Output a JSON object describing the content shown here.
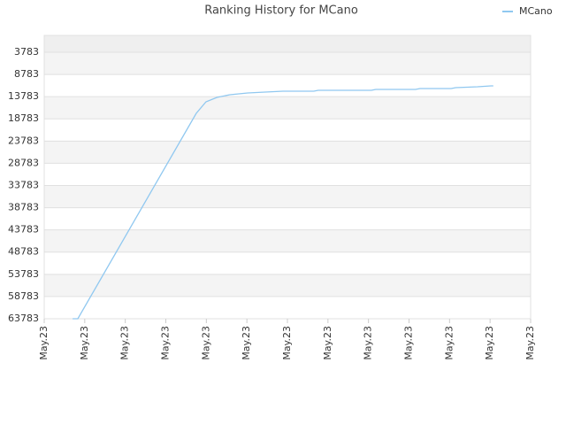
{
  "chart_data": {
    "type": "line",
    "title": "Ranking History for MCano",
    "x": [
      0.7,
      0.83,
      3.75,
      3.99,
      4.26,
      4.58,
      5.02,
      5.45,
      5.89,
      6.65,
      6.76,
      8.07,
      8.18,
      9.16,
      9.27,
      10.04,
      10.15,
      10.69,
      11.02,
      11.08
    ],
    "series": [
      {
        "name": "MCano",
        "color": "#90c8f0",
        "values": [
          63783,
          63783,
          17540,
          14950,
          13950,
          13355,
          12955,
          12756,
          12557,
          12557,
          12358,
          12358,
          12158,
          12158,
          11959,
          11959,
          11760,
          11561,
          11361,
          11361
        ]
      }
    ],
    "xlim": [
      0,
      12
    ],
    "xticks": [
      {
        "value": 0,
        "label": "May.23"
      },
      {
        "value": 1,
        "label": "May.23"
      },
      {
        "value": 2,
        "label": "May.23"
      },
      {
        "value": 3,
        "label": "May.23"
      },
      {
        "value": 4,
        "label": "May.23"
      },
      {
        "value": 5,
        "label": "May.23"
      },
      {
        "value": 6,
        "label": "May.23"
      },
      {
        "value": 7,
        "label": "May.23"
      },
      {
        "value": 8,
        "label": "May.23"
      },
      {
        "value": 9,
        "label": "May.23"
      },
      {
        "value": 10,
        "label": "May.23"
      },
      {
        "value": 11,
        "label": "May.23"
      },
      {
        "value": 12,
        "label": "May.23"
      }
    ],
    "ylim": [
      63783,
      0
    ],
    "yticks": [
      3783,
      8783,
      13783,
      18783,
      23783,
      28783,
      33783,
      38783,
      43783,
      48783,
      53783,
      58783,
      63783
    ],
    "grid": true,
    "legend": "top-right"
  }
}
